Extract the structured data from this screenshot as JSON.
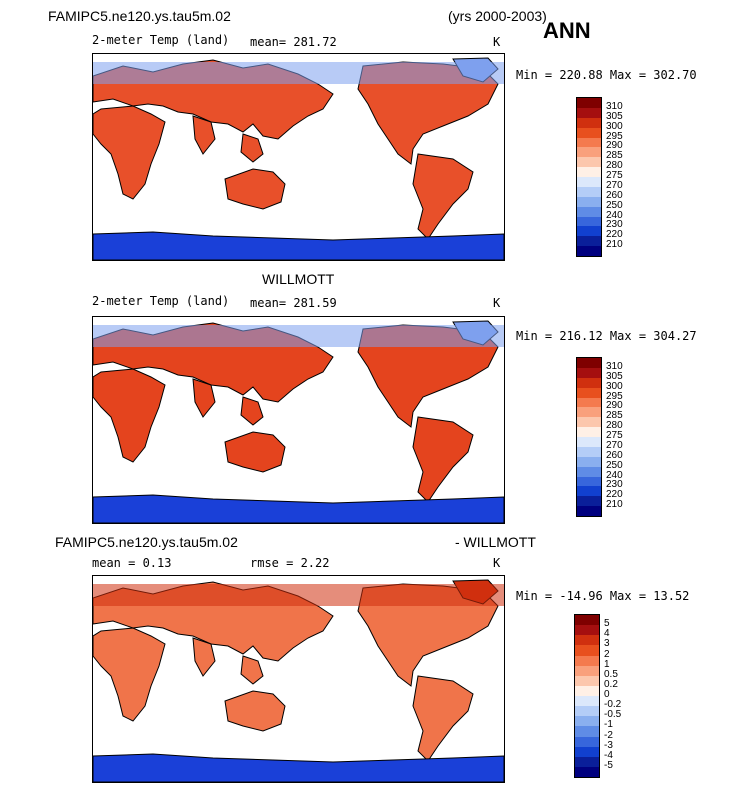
{
  "header": {
    "case_name": "FAMIPC5.ne120.ys.tau5m.02",
    "years": "(yrs 2000-2003)",
    "season": "ANN"
  },
  "panels": [
    {
      "id": "model",
      "variable": "2-meter Temp (land)",
      "stat_left": "mean=  281.72",
      "units": "K",
      "minmax": "Min = 220.88  Max = 302.70",
      "colorbar_labels": [
        "310",
        "305",
        "300",
        "295",
        "290",
        "285",
        "280",
        "275",
        "270",
        "260",
        "250",
        "240",
        "230",
        "220",
        "210"
      ]
    },
    {
      "id": "obs",
      "title": "WILLMOTT",
      "variable": "2-meter Temp (land)",
      "stat_left": "mean=  281.59",
      "units": "K",
      "minmax": "Min = 216.12  Max = 304.27",
      "colorbar_labels": [
        "310",
        "305",
        "300",
        "295",
        "290",
        "285",
        "280",
        "275",
        "270",
        "260",
        "250",
        "240",
        "230",
        "220",
        "210"
      ]
    },
    {
      "id": "diff",
      "title_left": "FAMIPC5.ne120.ys.tau5m.02",
      "title_right": "- WILLMOTT",
      "stat_left": "mean =    0.13",
      "stat_mid": "rmse =    2.22",
      "units": "K",
      "minmax": "Min = -14.96  Max =   13.52",
      "colorbar_labels": [
        "5",
        "4",
        "3",
        "2",
        "1",
        "0.5",
        "0.2",
        "0",
        "-0.2",
        "-0.5",
        "-1",
        "-2",
        "-3",
        "-4",
        "-5"
      ]
    }
  ],
  "colors": {
    "colorbar": [
      "#7f0000",
      "#a50f0f",
      "#d0300f",
      "#e8501e",
      "#f47a4e",
      "#f9a07c",
      "#fcc7ad",
      "#fff0e6",
      "#dce8fb",
      "#b4cdf7",
      "#8aafef",
      "#5f8ce6",
      "#3766dc",
      "#1140cf",
      "#0a1f9a",
      "#00007f"
    ],
    "land_warm": "#e8502a",
    "land_cold": "#7ea0ee",
    "antarctic": "#1a40d8",
    "coast": "#000000"
  },
  "chart_data": [
    {
      "type": "heatmap",
      "title": "FAMIPC5.ne120.ys.tau5m.02",
      "subtitle": "2-meter Temp (land)",
      "mean": 281.72,
      "min": 220.88,
      "max": 302.7,
      "units": "K",
      "levels": [
        210,
        220,
        230,
        240,
        250,
        260,
        270,
        275,
        280,
        285,
        290,
        295,
        300,
        305,
        310
      ]
    },
    {
      "type": "heatmap",
      "title": "WILLMOTT",
      "subtitle": "2-meter Temp (land)",
      "mean": 281.59,
      "min": 216.12,
      "max": 304.27,
      "units": "K",
      "levels": [
        210,
        220,
        230,
        240,
        250,
        260,
        270,
        275,
        280,
        285,
        290,
        295,
        300,
        305,
        310
      ]
    },
    {
      "type": "heatmap",
      "title": "FAMIPC5.ne120.ys.tau5m.02 - WILLMOTT",
      "mean": 0.13,
      "rmse": 2.22,
      "min": -14.96,
      "max": 13.52,
      "units": "K",
      "levels": [
        -5,
        -4,
        -3,
        -2,
        -1,
        -0.5,
        -0.2,
        0,
        0.2,
        0.5,
        1,
        2,
        3,
        4,
        5
      ]
    }
  ]
}
